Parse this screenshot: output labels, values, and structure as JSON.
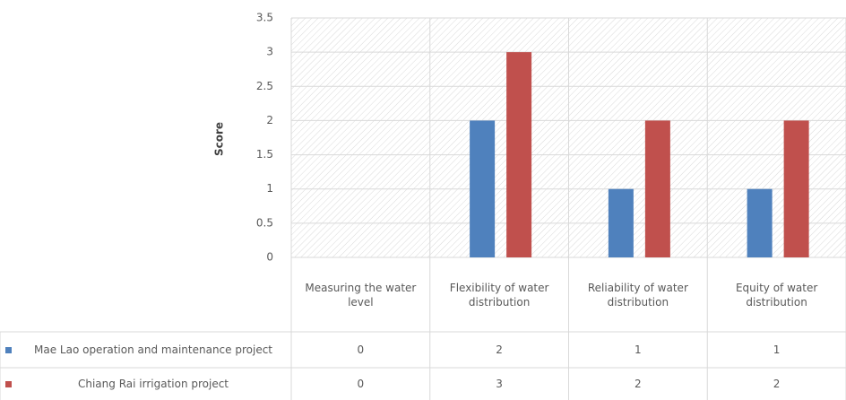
{
  "chart_data": {
    "type": "bar",
    "y_label": "Score",
    "categories": [
      "Measuring the water level",
      "Flexibility of water distribution",
      "Reliability of water distribution",
      "Equity of water distribution"
    ],
    "series": [
      {
        "name": "Mae Lao operation and maintenance project",
        "color": "#4f81bd",
        "values": [
          0,
          2,
          1,
          1
        ]
      },
      {
        "name": "Chiang Rai irrigation project",
        "color": "#c0504d",
        "values": [
          0,
          3,
          2,
          2
        ]
      }
    ],
    "ylim": [
      0,
      3.5
    ],
    "yticks": [
      0,
      0.5,
      1,
      1.5,
      2,
      2.5,
      3,
      3.5
    ],
    "grid": true,
    "data_table": true
  }
}
